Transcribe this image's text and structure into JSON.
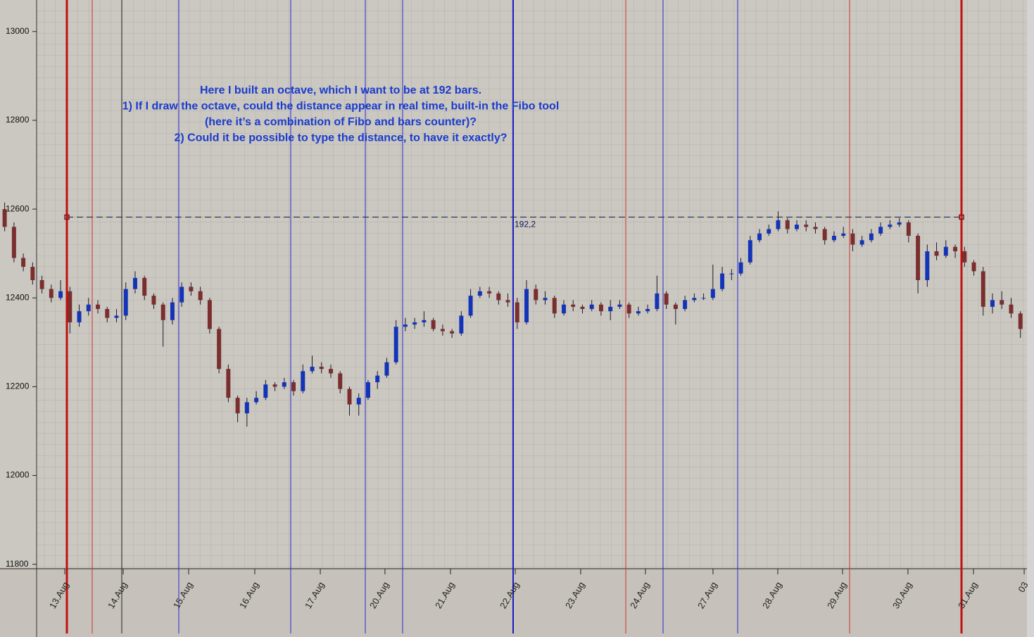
{
  "chart_data": {
    "type": "candlestick",
    "annotation": [
      "Here I built an octave, which I want to be at 192 bars.",
      "1) If I draw the octave, could the distance appear in real time, built-in the Fibo tool",
      "(here it’s a combination of Fibo and bars counter)?",
      "2) Could it be possible to type the distance, to have it exactly?"
    ],
    "annotation_color": "#1a3ccc",
    "octave": {
      "label": "192,2",
      "level": 12582
    },
    "up_color": "#1434b8",
    "down_color": "#7a2e2e",
    "ylim": [
      11790,
      13071
    ],
    "yticks": [
      11800,
      12000,
      12200,
      12400,
      12600,
      12800,
      13000
    ],
    "xlim": [
      -0.5,
      109.7
    ],
    "xticks": [
      {
        "value": 6.45,
        "label": "13.Aug"
      },
      {
        "value": 12.72,
        "label": "14.Aug"
      },
      {
        "value": 19.74,
        "label": "15.Aug"
      },
      {
        "value": 26.84,
        "label": "16.Aug"
      },
      {
        "value": 33.87,
        "label": "17.Aug"
      },
      {
        "value": 40.81,
        "label": "20.Aug"
      },
      {
        "value": 47.84,
        "label": "21.Aug"
      },
      {
        "value": 54.79,
        "label": "22.Aug"
      },
      {
        "value": 61.81,
        "label": "23.Aug"
      },
      {
        "value": 68.76,
        "label": "24.Aug"
      },
      {
        "value": 76.01,
        "label": "27.Aug"
      },
      {
        "value": 82.96,
        "label": "28.Aug"
      },
      {
        "value": 89.91,
        "label": "29.Aug"
      },
      {
        "value": 96.93,
        "label": "30.Aug"
      },
      {
        "value": 103.96,
        "label": "31.Aug"
      },
      {
        "value": 109.4,
        "label": "03"
      }
    ],
    "ohlc": [
      [
        12600,
        12615,
        12550,
        12560
      ],
      [
        12560,
        12570,
        12480,
        12490
      ],
      [
        12490,
        12500,
        12460,
        12470
      ],
      [
        12470,
        12480,
        12430,
        12440
      ],
      [
        12440,
        12450,
        12410,
        12420
      ],
      [
        12420,
        12430,
        12390,
        12400
      ],
      [
        12400,
        12440,
        12395,
        12415
      ],
      [
        12415,
        12425,
        12320,
        12345
      ],
      [
        12345,
        12385,
        12335,
        12370
      ],
      [
        12370,
        12400,
        12360,
        12385
      ],
      [
        12385,
        12395,
        12365,
        12375
      ],
      [
        12375,
        12380,
        12345,
        12355
      ],
      [
        12355,
        12375,
        12345,
        12360
      ],
      [
        12360,
        12435,
        12350,
        12420
      ],
      [
        12420,
        12460,
        12410,
        12445
      ],
      [
        12445,
        12450,
        12395,
        12405
      ],
      [
        12405,
        12410,
        12375,
        12385
      ],
      [
        12385,
        12390,
        12290,
        12350
      ],
      [
        12350,
        12400,
        12340,
        12390
      ],
      [
        12390,
        12435,
        12380,
        12425
      ],
      [
        12425,
        12435,
        12405,
        12415
      ],
      [
        12415,
        12425,
        12385,
        12395
      ],
      [
        12395,
        12400,
        12320,
        12330
      ],
      [
        12330,
        12335,
        12230,
        12240
      ],
      [
        12240,
        12250,
        12165,
        12175
      ],
      [
        12175,
        12180,
        12120,
        12140
      ],
      [
        12140,
        12175,
        12110,
        12165
      ],
      [
        12165,
        12190,
        12160,
        12175
      ],
      [
        12175,
        12215,
        12170,
        12205
      ],
      [
        12205,
        12210,
        12190,
        12200
      ],
      [
        12200,
        12220,
        12195,
        12210
      ],
      [
        12210,
        12215,
        12180,
        12190
      ],
      [
        12190,
        12250,
        12185,
        12235
      ],
      [
        12235,
        12270,
        12230,
        12245
      ],
      [
        12245,
        12255,
        12230,
        12240
      ],
      [
        12240,
        12250,
        12220,
        12230
      ],
      [
        12230,
        12235,
        12185,
        12195
      ],
      [
        12195,
        12200,
        12135,
        12160
      ],
      [
        12160,
        12185,
        12135,
        12175
      ],
      [
        12175,
        12215,
        12170,
        12210
      ],
      [
        12210,
        12235,
        12195,
        12225
      ],
      [
        12225,
        12265,
        12220,
        12255
      ],
      [
        12255,
        12350,
        12250,
        12335
      ],
      [
        12335,
        12355,
        12325,
        12340
      ],
      [
        12340,
        12355,
        12330,
        12345
      ],
      [
        12345,
        12370,
        12335,
        12350
      ],
      [
        12350,
        12355,
        12325,
        12330
      ],
      [
        12330,
        12340,
        12315,
        12325
      ],
      [
        12325,
        12330,
        12310,
        12320
      ],
      [
        12320,
        12370,
        12315,
        12360
      ],
      [
        12360,
        12420,
        12355,
        12405
      ],
      [
        12405,
        12425,
        12400,
        12415
      ],
      [
        12415,
        12425,
        12400,
        12410
      ],
      [
        12410,
        12415,
        12385,
        12395
      ],
      [
        12395,
        12410,
        12380,
        12390
      ],
      [
        12390,
        12400,
        12330,
        12345
      ],
      [
        12345,
        12440,
        12340,
        12420
      ],
      [
        12420,
        12430,
        12385,
        12395
      ],
      [
        12395,
        12415,
        12385,
        12400
      ],
      [
        12400,
        12405,
        12355,
        12365
      ],
      [
        12365,
        12395,
        12360,
        12385
      ],
      [
        12385,
        12395,
        12370,
        12380
      ],
      [
        12380,
        12385,
        12365,
        12375
      ],
      [
        12375,
        12395,
        12370,
        12385
      ],
      [
        12385,
        12390,
        12360,
        12370
      ],
      [
        12370,
        12395,
        12350,
        12380
      ],
      [
        12380,
        12395,
        12375,
        12385
      ],
      [
        12385,
        12390,
        12355,
        12365
      ],
      [
        12365,
        12380,
        12360,
        12370
      ],
      [
        12370,
        12385,
        12365,
        12375
      ],
      [
        12375,
        12450,
        12370,
        12410
      ],
      [
        12410,
        12415,
        12375,
        12385
      ],
      [
        12385,
        12390,
        12340,
        12375
      ],
      [
        12375,
        12405,
        12370,
        12395
      ],
      [
        12395,
        12410,
        12390,
        12400
      ],
      [
        12400,
        12410,
        12395,
        12400
      ],
      [
        12400,
        12475,
        12395,
        12420
      ],
      [
        12420,
        12470,
        12415,
        12455
      ],
      [
        12455,
        12465,
        12440,
        12455
      ],
      [
        12455,
        12490,
        12450,
        12480
      ],
      [
        12480,
        12540,
        12475,
        12530
      ],
      [
        12530,
        12555,
        12525,
        12545
      ],
      [
        12545,
        12565,
        12540,
        12555
      ],
      [
        12555,
        12595,
        12550,
        12575
      ],
      [
        12575,
        12580,
        12545,
        12555
      ],
      [
        12555,
        12575,
        12550,
        12565
      ],
      [
        12565,
        12575,
        12550,
        12560
      ],
      [
        12560,
        12570,
        12545,
        12555
      ],
      [
        12555,
        12560,
        12520,
        12530
      ],
      [
        12530,
        12550,
        12525,
        12540
      ],
      [
        12540,
        12560,
        12535,
        12545
      ],
      [
        12545,
        12555,
        12505,
        12520
      ],
      [
        12520,
        12540,
        12515,
        12530
      ],
      [
        12530,
        12555,
        12525,
        12545
      ],
      [
        12545,
        12570,
        12540,
        12560
      ],
      [
        12560,
        12575,
        12555,
        12565
      ],
      [
        12565,
        12580,
        12560,
        12570
      ],
      [
        12570,
        12575,
        12525,
        12540
      ],
      [
        12540,
        12545,
        12410,
        12440
      ],
      [
        12440,
        12520,
        12425,
        12505
      ],
      [
        12505,
        12525,
        12485,
        12495
      ],
      [
        12495,
        12530,
        12490,
        12515
      ],
      [
        12515,
        12520,
        12490,
        12505
      ],
      [
        12505,
        12515,
        12470,
        12480
      ],
      [
        12480,
        12485,
        12450,
        12460
      ],
      [
        12460,
        12470,
        12360,
        12380
      ],
      [
        12380,
        12410,
        12365,
        12395
      ],
      [
        12395,
        12415,
        12375,
        12385
      ],
      [
        12385,
        12400,
        12355,
        12365
      ],
      [
        12365,
        12370,
        12310,
        12330
      ]
    ]
  }
}
